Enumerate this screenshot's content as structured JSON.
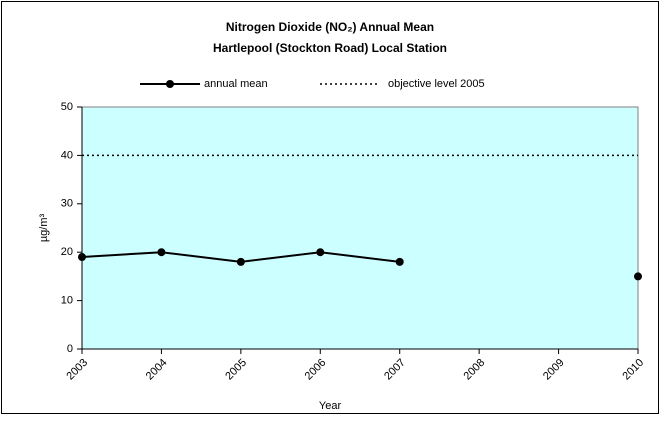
{
  "chart_data": {
    "type": "line",
    "title": "Nitrogen Dioxide (NO₂) Annual Mean",
    "subtitle": "Hartlepool (Stockton Road) Local Station",
    "x_label": "Year",
    "y_label": "µg/m³",
    "x": [
      2003,
      2004,
      2005,
      2006,
      2007,
      2008,
      2009,
      2010
    ],
    "xlim": [
      2003,
      2010
    ],
    "xticks": [
      2003,
      2004,
      2005,
      2006,
      2007,
      2008,
      2009,
      2010
    ],
    "ylim": [
      0,
      50
    ],
    "yticks": [
      0,
      10,
      20,
      30,
      40,
      50
    ],
    "plot_background": "#ccffff",
    "series": [
      {
        "name": "annual mean",
        "color": "#000000",
        "style": "solid",
        "marker": "circle",
        "values": [
          19,
          20,
          18,
          20,
          18,
          null,
          null,
          15
        ]
      },
      {
        "name": "objective level 2005",
        "color": "#000000",
        "style": "dotted",
        "marker": "none",
        "values": [
          40,
          40,
          40,
          40,
          40,
          40,
          40,
          40
        ]
      }
    ]
  }
}
